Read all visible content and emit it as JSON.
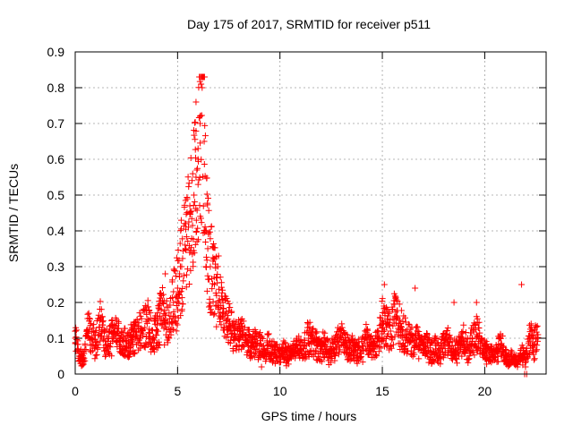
{
  "chart_data": {
    "type": "scatter",
    "title": "Day 175 of 2017, SRMTID for receiver p511",
    "xlabel": "GPS time / hours",
    "ylabel": "SRMTID / TECUs",
    "xlim": [
      0,
      23
    ],
    "ylim": [
      0,
      0.9
    ],
    "xticks": [
      0,
      5,
      10,
      15,
      20
    ],
    "xtick_labels": [
      "0",
      "5",
      "10",
      "15",
      "20"
    ],
    "yticks": [
      0,
      0.1,
      0.2,
      0.3,
      0.4,
      0.5,
      0.6,
      0.7,
      0.8,
      0.9
    ],
    "ytick_labels": [
      "0",
      "0.1",
      "0.2",
      "0.3",
      "0.4",
      "0.5",
      "0.6",
      "0.7",
      "0.8",
      "0.9"
    ],
    "grid": true,
    "marker": "plus",
    "series": [
      {
        "name": "SRMTID",
        "color": "#ff0000",
        "x": [
          0.0,
          0.2,
          0.4,
          0.6,
          0.8,
          1.0,
          1.2,
          1.4,
          1.6,
          1.8,
          2.0,
          2.2,
          2.4,
          2.6,
          2.8,
          3.0,
          3.2,
          3.4,
          3.6,
          3.8,
          4.0,
          4.2,
          4.4,
          4.6,
          4.8,
          5.0,
          5.2,
          5.4,
          5.6,
          5.8,
          5.9,
          6.0,
          6.1,
          6.2,
          6.3,
          6.4,
          6.6,
          6.8,
          7.0,
          7.2,
          7.4,
          7.6,
          7.8,
          8.0,
          8.2,
          8.4,
          8.6,
          8.8,
          9.0,
          9.2,
          9.4,
          9.6,
          9.8,
          10.0,
          10.2,
          10.4,
          10.6,
          10.8,
          11.0,
          11.2,
          11.4,
          11.6,
          11.8,
          12.0,
          12.2,
          12.4,
          12.6,
          12.8,
          13.0,
          13.2,
          13.4,
          13.6,
          13.8,
          14.0,
          14.2,
          14.4,
          14.6,
          14.8,
          15.0,
          15.2,
          15.4,
          15.6,
          15.8,
          16.0,
          16.2,
          16.4,
          16.6,
          16.8,
          17.0,
          17.2,
          17.4,
          17.6,
          17.8,
          18.0,
          18.2,
          18.4,
          18.6,
          18.8,
          19.0,
          19.2,
          19.4,
          19.6,
          19.8,
          20.0,
          20.2,
          20.4,
          20.6,
          20.8,
          21.0,
          21.2,
          21.4,
          21.6,
          21.8,
          22.0,
          22.2,
          22.4,
          22.6
        ],
        "y": [
          0.1,
          0.05,
          0.04,
          0.12,
          0.1,
          0.09,
          0.15,
          0.1,
          0.08,
          0.1,
          0.11,
          0.09,
          0.1,
          0.08,
          0.1,
          0.11,
          0.12,
          0.13,
          0.15,
          0.1,
          0.12,
          0.18,
          0.15,
          0.14,
          0.2,
          0.24,
          0.3,
          0.35,
          0.45,
          0.5,
          0.55,
          0.6,
          0.7,
          0.8,
          0.65,
          0.4,
          0.3,
          0.25,
          0.2,
          0.17,
          0.15,
          0.12,
          0.11,
          0.1,
          0.11,
          0.09,
          0.08,
          0.09,
          0.08,
          0.07,
          0.08,
          0.06,
          0.06,
          0.05,
          0.06,
          0.05,
          0.06,
          0.08,
          0.07,
          0.08,
          0.1,
          0.09,
          0.08,
          0.07,
          0.08,
          0.06,
          0.07,
          0.09,
          0.1,
          0.08,
          0.07,
          0.08,
          0.06,
          0.07,
          0.1,
          0.08,
          0.07,
          0.1,
          0.15,
          0.13,
          0.12,
          0.16,
          0.14,
          0.12,
          0.1,
          0.09,
          0.1,
          0.08,
          0.07,
          0.08,
          0.06,
          0.07,
          0.06,
          0.08,
          0.09,
          0.07,
          0.06,
          0.08,
          0.09,
          0.07,
          0.1,
          0.11,
          0.09,
          0.07,
          0.06,
          0.05,
          0.06,
          0.08,
          0.05,
          0.04,
          0.04,
          0.03,
          0.05,
          0.04,
          0.1,
          0.08,
          0.11
        ]
      }
    ],
    "spike_markers": [
      {
        "x": 5.9,
        "y": 0.76
      },
      {
        "x": 6.15,
        "y": 0.81
      },
      {
        "x": 6.1,
        "y": 0.72
      },
      {
        "x": 6.0,
        "y": 0.63
      },
      {
        "x": 5.4,
        "y": 0.42
      },
      {
        "x": 5.6,
        "y": 0.47
      },
      {
        "x": 4.4,
        "y": 0.28
      },
      {
        "x": 7.0,
        "y": 0.33
      },
      {
        "x": 15.1,
        "y": 0.25
      },
      {
        "x": 16.6,
        "y": 0.24
      },
      {
        "x": 18.5,
        "y": 0.2
      },
      {
        "x": 19.6,
        "y": 0.2
      },
      {
        "x": 21.8,
        "y": 0.25
      },
      {
        "x": 9.1,
        "y": 0.02
      },
      {
        "x": 21.95,
        "y": 0.0
      },
      {
        "x": 22.05,
        "y": 0.0
      }
    ]
  }
}
